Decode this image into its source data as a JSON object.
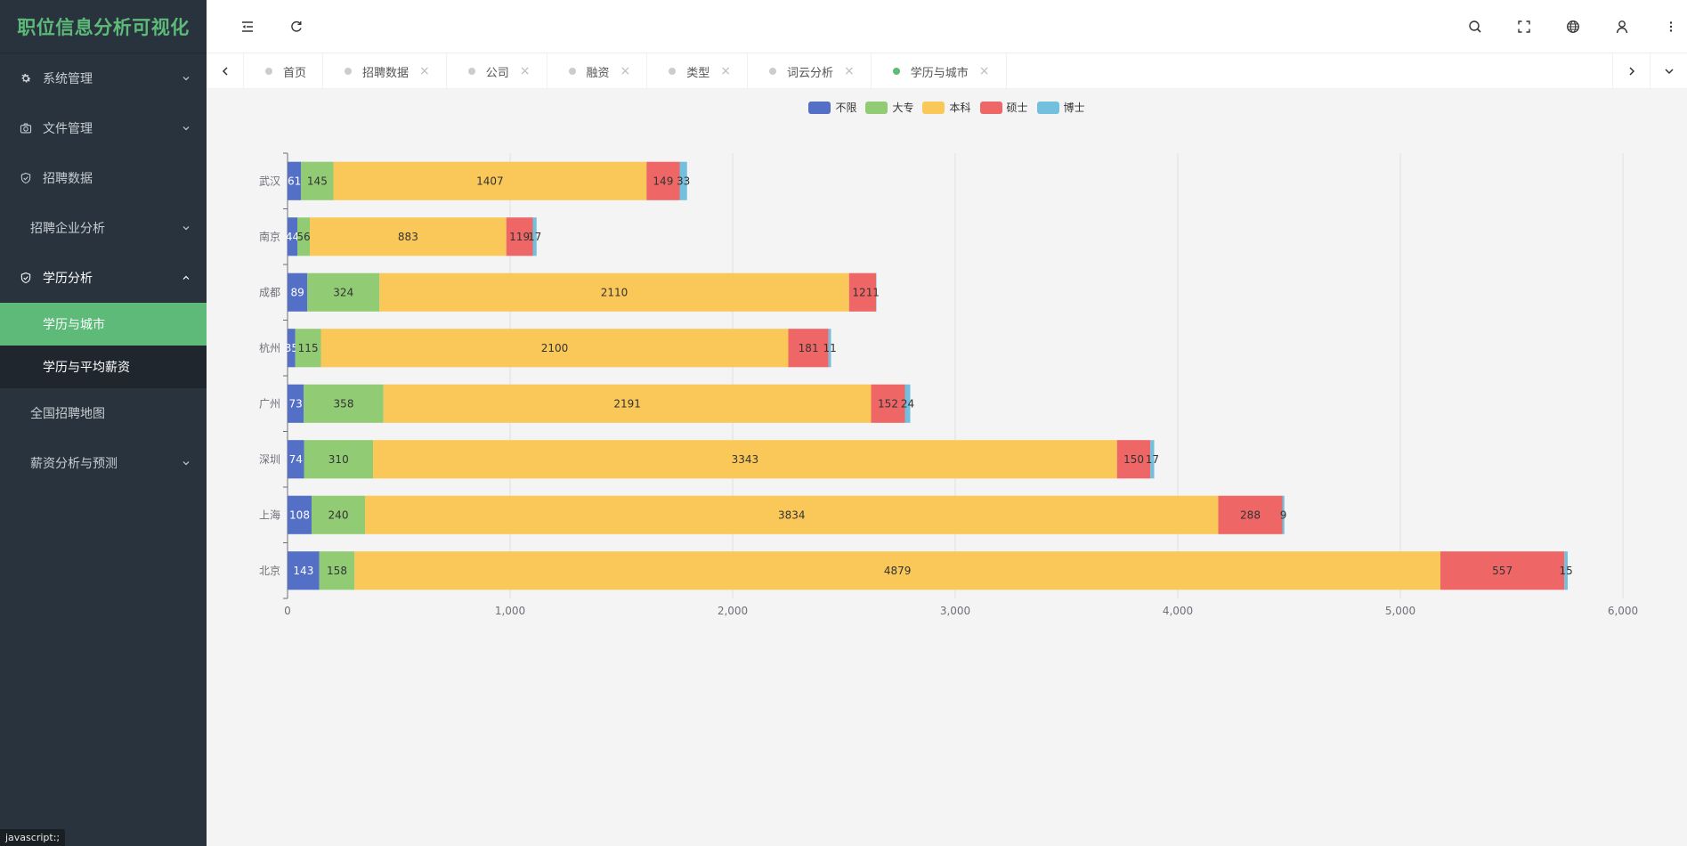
{
  "app": {
    "title": "职位信息分析可视化",
    "status_tip": "javascript:;"
  },
  "sidebar": {
    "items": [
      {
        "label": "系统管理",
        "icon": "gear-icon",
        "expanded": false,
        "has_children": true
      },
      {
        "label": "文件管理",
        "icon": "camera-icon",
        "expanded": false,
        "has_children": true
      },
      {
        "label": "招聘数据",
        "icon": "shield-check-icon",
        "has_children": false
      },
      {
        "label": "招聘企业分析",
        "icon": null,
        "expanded": false,
        "has_children": true
      },
      {
        "label": "学历分析",
        "icon": "shield-check-icon",
        "expanded": true,
        "has_children": true,
        "children": [
          {
            "label": "学历与城市",
            "active": true
          },
          {
            "label": "学历与平均薪资",
            "active": false
          }
        ]
      },
      {
        "label": "全国招聘地图",
        "icon": null,
        "has_children": false
      },
      {
        "label": "薪资分析与预测",
        "icon": null,
        "expanded": false,
        "has_children": true
      }
    ]
  },
  "header": {
    "left_icons": [
      "collapse-menu-icon",
      "refresh-icon"
    ],
    "right_icons": [
      "search-icon",
      "fullscreen-icon",
      "language-globe-icon",
      "user-icon",
      "more-vertical-icon"
    ]
  },
  "tabs": {
    "items": [
      {
        "label": "首页",
        "closable": false,
        "active": false
      },
      {
        "label": "招聘数据",
        "closable": true,
        "active": false
      },
      {
        "label": "公司",
        "closable": true,
        "active": false
      },
      {
        "label": "融资",
        "closable": true,
        "active": false
      },
      {
        "label": "类型",
        "closable": true,
        "active": false
      },
      {
        "label": "词云分析",
        "closable": true,
        "active": false
      },
      {
        "label": "学历与城市",
        "closable": true,
        "active": true
      }
    ],
    "close_glyph": "×"
  },
  "colors": {
    "accent": "#5dba79",
    "sidebar_bg": "#28333e"
  },
  "chart_data": {
    "type": "bar",
    "orientation": "horizontal",
    "stacked": true,
    "title": "",
    "xlabel": "",
    "ylabel": "",
    "categories": [
      "北京",
      "上海",
      "深圳",
      "广州",
      "杭州",
      "成都",
      "南京",
      "武汉"
    ],
    "xlim": [
      0,
      6000
    ],
    "xticks": [
      0,
      1000,
      2000,
      3000,
      4000,
      5000,
      6000
    ],
    "xtick_labels": [
      "0",
      "1,000",
      "2,000",
      "3,000",
      "4,000",
      "5,000",
      "6,000"
    ],
    "grid": "vertical",
    "legend_position": "top-center",
    "series": [
      {
        "name": "不限",
        "color": "#5470c6",
        "label_color": "#ffffff",
        "values": [
          143,
          108,
          74,
          73,
          35,
          89,
          44,
          61
        ]
      },
      {
        "name": "大专",
        "color": "#91cc75",
        "label_color": "#333333",
        "values": [
          158,
          240,
          310,
          358,
          115,
          324,
          56,
          145
        ]
      },
      {
        "name": "本科",
        "color": "#fac858",
        "label_color": "#333333",
        "values": [
          4879,
          3834,
          3343,
          2191,
          2100,
          2110,
          883,
          1407
        ]
      },
      {
        "name": "硕士",
        "color": "#ee6666",
        "label_color": "#333333",
        "values": [
          557,
          288,
          150,
          152,
          181,
          121,
          119,
          149
        ]
      },
      {
        "name": "博士",
        "color": "#73c0de",
        "label_color": "#333333",
        "values": [
          15,
          9,
          17,
          24,
          11,
          1,
          17,
          33
        ]
      }
    ]
  }
}
